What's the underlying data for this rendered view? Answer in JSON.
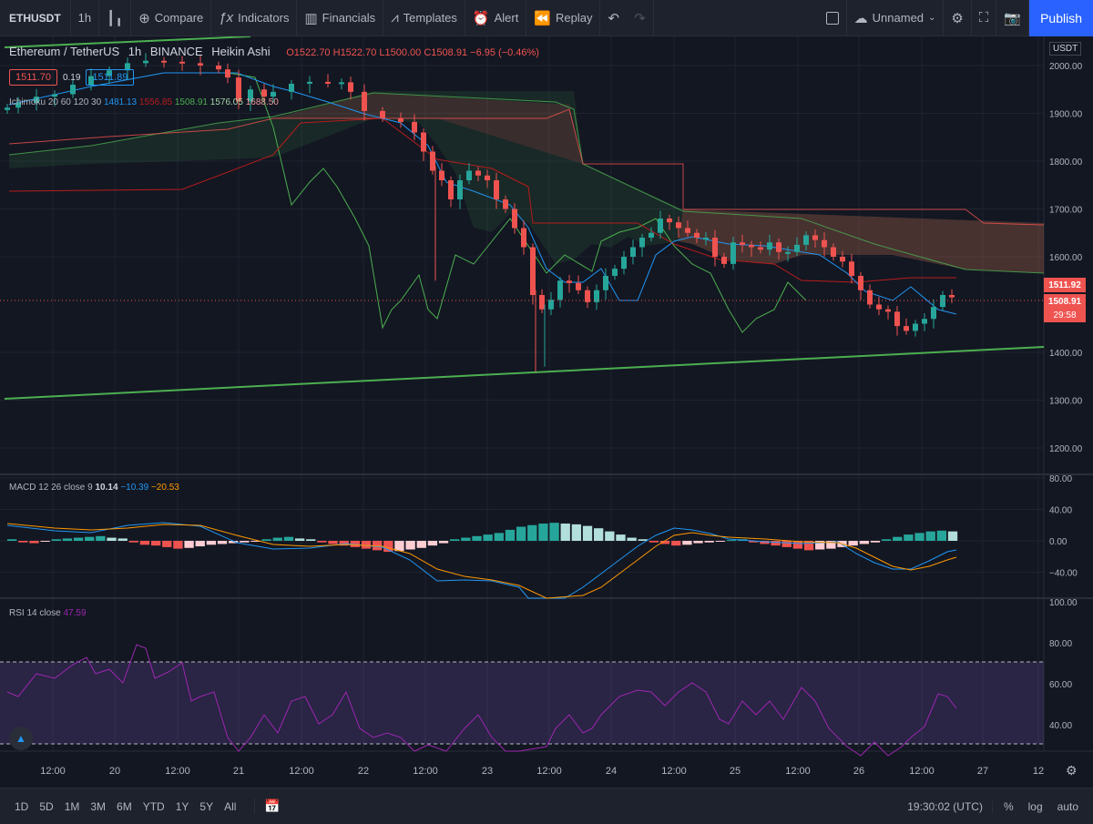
{
  "toolbar": {
    "symbol": "ETHUSDT",
    "interval": "1h",
    "compare": "Compare",
    "indicators": "Indicators",
    "financials": "Financials",
    "templates": "Templates",
    "alert": "Alert",
    "replay": "Replay",
    "layout_name": "Unnamed",
    "publish": "Publish"
  },
  "legend": {
    "title": "Ethereum / TetherUS",
    "interval": "1h",
    "exchange": "BINANCE",
    "style": "Heikin Ashi",
    "open": "O1522.70",
    "high": "H1522.70",
    "low": "L1500.00",
    "close": "C1508.91",
    "change": "−6.95 (−0.46%)",
    "bid": "1511.70",
    "spread": "0.19",
    "ask": "1511.89",
    "ichimoku_label": "Ichimoku 20 60 120 30",
    "ichimoku_v1": "1481.13",
    "ichimoku_v2": "1556.85",
    "ichimoku_v3": "1508.91",
    "ichimoku_v4": "1576.05",
    "ichimoku_v5": "1688.50"
  },
  "macd": {
    "label": "MACD 12 26 close 9",
    "v1": "10.14",
    "v2": "−10.39",
    "v3": "−20.53"
  },
  "rsi": {
    "label": "RSI 14 close",
    "v1": "47.59"
  },
  "currency": "USDT",
  "price_axis": [
    "2000.00",
    "1900.00",
    "1800.00",
    "1700.00",
    "1600.00",
    "1400.00",
    "1300.00",
    "1200.00"
  ],
  "price_labels": {
    "last": "1511.92",
    "current": "1508.91",
    "countdown": "29:58"
  },
  "macd_axis": [
    "80.00",
    "40.00",
    "0.00",
    "−40.00"
  ],
  "rsi_axis": [
    "100.00",
    "80.00",
    "60.00",
    "40.00"
  ],
  "time_axis": [
    "12:00",
    "20",
    "12:00",
    "21",
    "12:00",
    "22",
    "12:00",
    "23",
    "12:00",
    "24",
    "12:00",
    "25",
    "12:00",
    "26",
    "12:00",
    "27",
    "12"
  ],
  "bottom": {
    "ranges": [
      "1D",
      "5D",
      "1M",
      "3M",
      "6M",
      "YTD",
      "1Y",
      "5Y",
      "All"
    ],
    "clock": "19:30:02 (UTC)",
    "percent": "%",
    "log": "log",
    "auto": "auto"
  },
  "colors": {
    "up": "#26a69a",
    "down": "#ef5350",
    "trend": "#4caf50",
    "tenkan": "#2196f3",
    "kijun": "#b71c1c",
    "rsi": "#9c27b0"
  }
}
